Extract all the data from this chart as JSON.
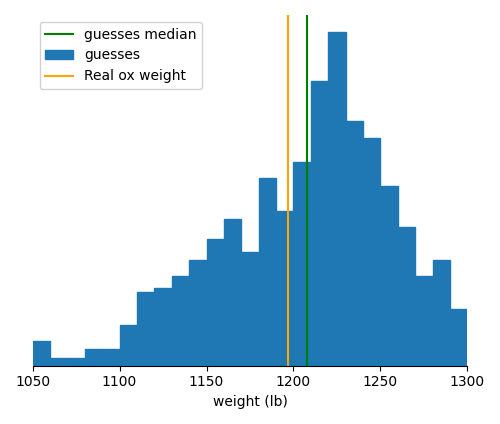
{
  "real_ox_weight": 1197,
  "guesses_median": 1208,
  "bar_color": "#1f77b4",
  "real_ox_color": "orange",
  "median_color": "green",
  "xlabel": "weight (lb)",
  "legend_labels": [
    "Real ox weight",
    "guesses median",
    "guesses"
  ],
  "xlim": [
    1050,
    1300
  ],
  "figsize": [
    5.0,
    4.24
  ],
  "dpi": 100,
  "bin_width": 10,
  "bin_starts": [
    1050,
    1060,
    1070,
    1080,
    1090,
    1100,
    1110,
    1120,
    1130,
    1140,
    1150,
    1160,
    1170,
    1180,
    1190,
    1200,
    1210,
    1220,
    1230,
    1240,
    1250,
    1260,
    1270,
    1280,
    1290
  ],
  "counts": [
    6,
    2,
    2,
    4,
    4,
    10,
    18,
    19,
    22,
    26,
    31,
    36,
    28,
    46,
    38,
    50,
    70,
    82,
    60,
    56,
    44,
    34,
    22,
    26,
    14
  ]
}
